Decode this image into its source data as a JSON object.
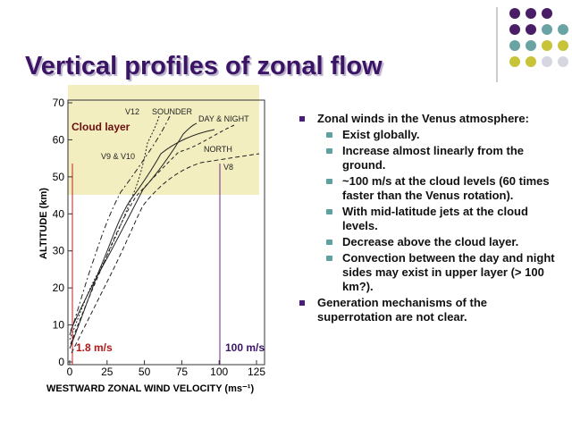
{
  "slide": {
    "title": "Vertical profiles of zonal flow",
    "figure": {
      "y_axis_label": "ALTITUDE (km)",
      "x_axis_label": "WESTWARD ZONAL WIND VELOCITY (ms⁻¹)",
      "yticks": [
        0,
        10,
        20,
        30,
        40,
        50,
        60,
        70
      ],
      "xticks": [
        0,
        25,
        50,
        75,
        100,
        125
      ],
      "annotations": [
        "Cloud layer",
        "V12",
        "SOUNDER",
        "DAY & NIGHT",
        "NORTH",
        "V8",
        "V9 & V10",
        "1.8 m/s",
        "100 m/s"
      ]
    },
    "bullets": [
      {
        "text": "Zonal winds in the Venus atmosphere:",
        "sub": [
          "Exist globally.",
          "Increase almost linearly from the ground.",
          "~100 m/s at the cloud levels (60 times faster than the Venus rotation).",
          "With mid-latitude jets at the cloud levels.",
          "Decrease above the cloud layer.",
          "Convection between the day and night sides may exist in upper layer (> 100 km?)."
        ]
      },
      {
        "text": "Generation mechanisms of the superrotation are not clear.",
        "sub": []
      }
    ]
  }
}
